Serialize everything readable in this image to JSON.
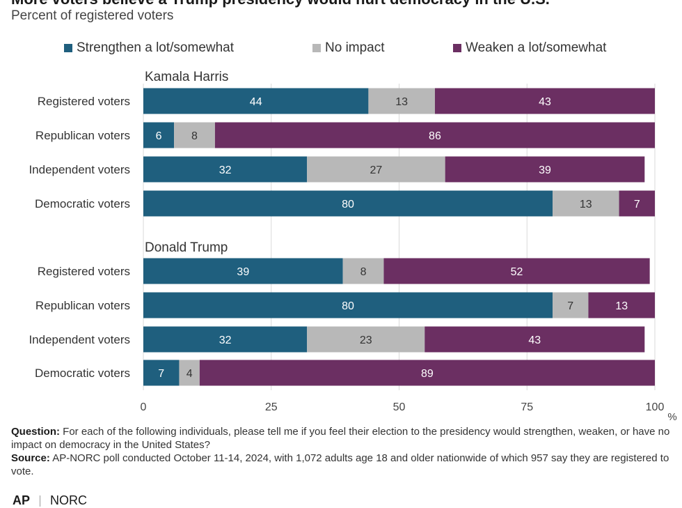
{
  "header": {
    "title": "More voters believe a Trump presidency would hurt democracy in the U.S.",
    "subtitle": "Percent of registered voters"
  },
  "legend": [
    {
      "label": "Strengthen a lot/somewhat",
      "color": "#1f5f7e"
    },
    {
      "label": "No impact",
      "color": "#b8b8b8"
    },
    {
      "label": "Weaken a lot/somewhat",
      "color": "#6b2f62"
    }
  ],
  "chart_data": {
    "type": "bar",
    "orientation": "horizontal",
    "stacked": true,
    "xlim": [
      0,
      100
    ],
    "xticks": [
      0,
      25,
      50,
      75,
      100
    ],
    "x_unit_label": "%",
    "grid": true,
    "legend_position": "top",
    "groups": [
      {
        "title": "Kamala Harris",
        "categories": [
          "Registered voters",
          "Republican voters",
          "Independent voters",
          "Democratic voters"
        ],
        "series": [
          {
            "name": "Strengthen a lot/somewhat",
            "values": [
              44,
              6,
              32,
              80
            ]
          },
          {
            "name": "No impact",
            "values": [
              13,
              8,
              27,
              13
            ]
          },
          {
            "name": "Weaken a lot/somewhat",
            "values": [
              43,
              86,
              39,
              7
            ]
          }
        ]
      },
      {
        "title": "Donald Trump",
        "categories": [
          "Registered voters",
          "Republican voters",
          "Independent voters",
          "Democratic voters"
        ],
        "series": [
          {
            "name": "Strengthen a lot/somewhat",
            "values": [
              39,
              80,
              32,
              7
            ]
          },
          {
            "name": "No impact",
            "values": [
              8,
              7,
              23,
              4
            ]
          },
          {
            "name": "Weaken a lot/somewhat",
            "values": [
              52,
              13,
              43,
              89
            ]
          }
        ]
      }
    ],
    "colors": [
      "#1f5f7e",
      "#b8b8b8",
      "#6b2f62"
    ],
    "label_colors": [
      "#ffffff",
      "#333333",
      "#ffffff"
    ]
  },
  "notes": {
    "question_label": "Question:",
    "question_text": " For each of the following individuals, please tell me if you feel their election to the presidency would strengthen, weaken, or have no impact on democracy in the United States?",
    "source_label": "Source:",
    "source_text": " AP-NORC poll conducted October 11-14, 2024, with 1,072 adults age 18 and older nationwide of which 957 say they are registered to vote."
  },
  "footer": {
    "logo_ap": "AP",
    "logo_norc": "NORC"
  }
}
